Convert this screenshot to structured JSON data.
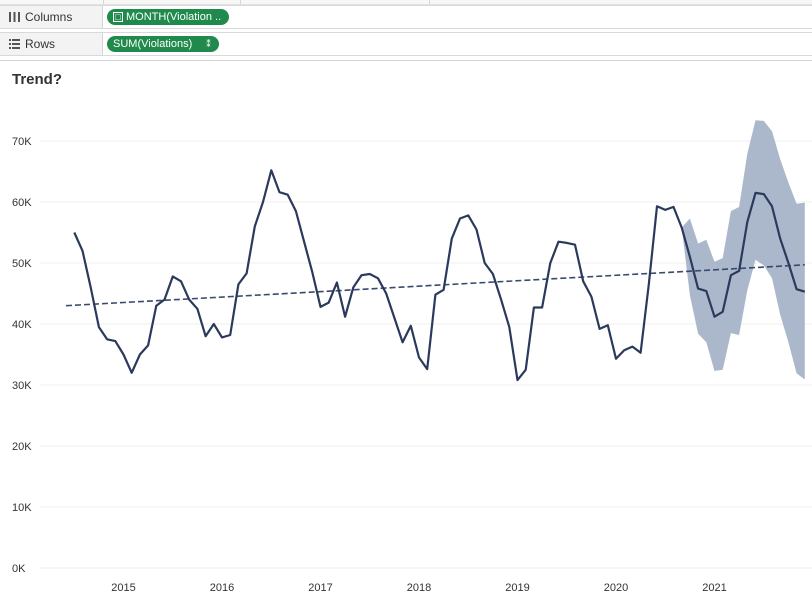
{
  "shelves": {
    "columns": {
      "label": "Columns",
      "icon": "columns-icon",
      "pill": "MONTH(Violation ..",
      "pill_prefix": "□"
    },
    "rows": {
      "label": "Rows",
      "icon": "rows-icon",
      "pill": "SUM(Violations)",
      "pill_suffix": "⁑"
    }
  },
  "colors": {
    "pill": "#1f8a4c",
    "line": "#2b3a5c",
    "forecast_band": "#a7b4c9",
    "trend": "#3a4a6c"
  },
  "chart_data": {
    "type": "line",
    "title": "Trend?",
    "xlabel": "",
    "ylabel": "",
    "x_ticks": [
      "2015",
      "2016",
      "2017",
      "2018",
      "2019",
      "2020",
      "2021"
    ],
    "y_ticks": [
      "0K",
      "10K",
      "20K",
      "30K",
      "40K",
      "50K",
      "60K",
      "70K"
    ],
    "ylim": [
      0,
      70000
    ],
    "grid": true,
    "series": [
      {
        "values": [
          [
            "2014-07",
            55000
          ],
          [
            "2014-08",
            52000
          ],
          [
            "2014-09",
            46000
          ],
          [
            "2014-10",
            39500
          ],
          [
            "2014-11",
            37500
          ],
          [
            "2014-12",
            37200
          ],
          [
            "2015-01",
            35000
          ],
          [
            "2015-02",
            32000
          ],
          [
            "2015-03",
            35000
          ],
          [
            "2015-04",
            36500
          ],
          [
            "2015-05",
            43000
          ],
          [
            "2015-06",
            44000
          ],
          [
            "2015-07",
            47800
          ],
          [
            "2015-08",
            47000
          ],
          [
            "2015-09",
            44000
          ],
          [
            "2015-10",
            42500
          ],
          [
            "2015-11",
            38000
          ],
          [
            "2015-12",
            40000
          ],
          [
            "2016-01",
            37800
          ],
          [
            "2016-02",
            38200
          ],
          [
            "2016-03",
            46500
          ],
          [
            "2016-04",
            48300
          ],
          [
            "2016-05",
            56000
          ],
          [
            "2016-06",
            60000
          ],
          [
            "2016-07",
            65200
          ],
          [
            "2016-08",
            61600
          ],
          [
            "2016-09",
            61200
          ],
          [
            "2016-10",
            58500
          ],
          [
            "2016-11",
            53500
          ],
          [
            "2016-12",
            48500
          ],
          [
            "2017-01",
            42800
          ],
          [
            "2017-02",
            43500
          ],
          [
            "2017-03",
            46800
          ],
          [
            "2017-04",
            41200
          ],
          [
            "2017-05",
            46000
          ],
          [
            "2017-06",
            48000
          ],
          [
            "2017-07",
            48200
          ],
          [
            "2017-08",
            47500
          ],
          [
            "2017-09",
            45000
          ],
          [
            "2017-10",
            41000
          ],
          [
            "2017-11",
            37000
          ],
          [
            "2017-12",
            39700
          ],
          [
            "2018-01",
            34500
          ],
          [
            "2018-02",
            32600
          ],
          [
            "2018-03",
            44800
          ],
          [
            "2018-04",
            45600
          ],
          [
            "2018-05",
            54000
          ],
          [
            "2018-06",
            57300
          ],
          [
            "2018-07",
            57800
          ],
          [
            "2018-08",
            55500
          ],
          [
            "2018-09",
            50000
          ],
          [
            "2018-10",
            48200
          ],
          [
            "2018-11",
            44000
          ],
          [
            "2018-12",
            39500
          ],
          [
            "2019-01",
            30800
          ],
          [
            "2019-02",
            32500
          ],
          [
            "2019-03",
            42700
          ],
          [
            "2019-04",
            42700
          ],
          [
            "2019-05",
            50000
          ],
          [
            "2019-06",
            53500
          ],
          [
            "2019-07",
            53300
          ],
          [
            "2019-08",
            53000
          ],
          [
            "2019-09",
            47000
          ],
          [
            "2019-10",
            44500
          ],
          [
            "2019-11",
            39200
          ],
          [
            "2019-12",
            39800
          ],
          [
            "2020-01",
            34300
          ],
          [
            "2020-02",
            35700
          ],
          [
            "2020-03",
            36300
          ],
          [
            "2020-04",
            35300
          ],
          [
            "2020-05",
            46500
          ],
          [
            "2020-06",
            59300
          ],
          [
            "2020-07",
            58700
          ],
          [
            "2020-08",
            59200
          ],
          [
            "2020-09",
            55800
          ],
          [
            "2020-10",
            51000
          ],
          [
            "2020-11",
            45800
          ],
          [
            "2020-12",
            45400
          ],
          [
            "2021-01",
            41200
          ],
          [
            "2021-02",
            42000
          ],
          [
            "2021-03",
            48000
          ],
          [
            "2021-04",
            48700
          ],
          [
            "2021-05",
            56700
          ],
          [
            "2021-06",
            61500
          ],
          [
            "2021-07",
            61300
          ],
          [
            "2021-08",
            59300
          ],
          [
            "2021-09",
            54000
          ],
          [
            "2021-10",
            50000
          ],
          [
            "2021-11",
            45700
          ],
          [
            "2021-12",
            45300
          ]
        ]
      }
    ],
    "forecast_band": {
      "upper": [
        [
          "2020-09",
          55800
        ],
        [
          "2020-10",
          57300
        ],
        [
          "2020-11",
          53200
        ],
        [
          "2020-12",
          53800
        ],
        [
          "2021-01",
          50200
        ],
        [
          "2021-02",
          50800
        ],
        [
          "2021-03",
          58500
        ],
        [
          "2021-04",
          59200
        ],
        [
          "2021-05",
          67900
        ],
        [
          "2021-06",
          73400
        ],
        [
          "2021-07",
          73300
        ],
        [
          "2021-08",
          71600
        ],
        [
          "2021-09",
          67000
        ],
        [
          "2021-10",
          63200
        ],
        [
          "2021-11",
          59700
        ],
        [
          "2021-12",
          59900
        ]
      ],
      "lower": [
        [
          "2020-09",
          55800
        ],
        [
          "2020-10",
          44700
        ],
        [
          "2020-11",
          38400
        ],
        [
          "2020-12",
          37000
        ],
        [
          "2021-01",
          32300
        ],
        [
          "2021-02",
          32500
        ],
        [
          "2021-03",
          38500
        ],
        [
          "2021-04",
          38200
        ],
        [
          "2021-05",
          45500
        ],
        [
          "2021-06",
          50500
        ],
        [
          "2021-07",
          49600
        ],
        [
          "2021-08",
          47500
        ],
        [
          "2021-09",
          41500
        ],
        [
          "2021-10",
          37000
        ],
        [
          "2021-11",
          31900
        ],
        [
          "2021-12",
          30900
        ]
      ]
    },
    "trend_line": [
      [
        "2014-06",
        43000
      ],
      [
        "2021-12",
        49700
      ]
    ]
  }
}
